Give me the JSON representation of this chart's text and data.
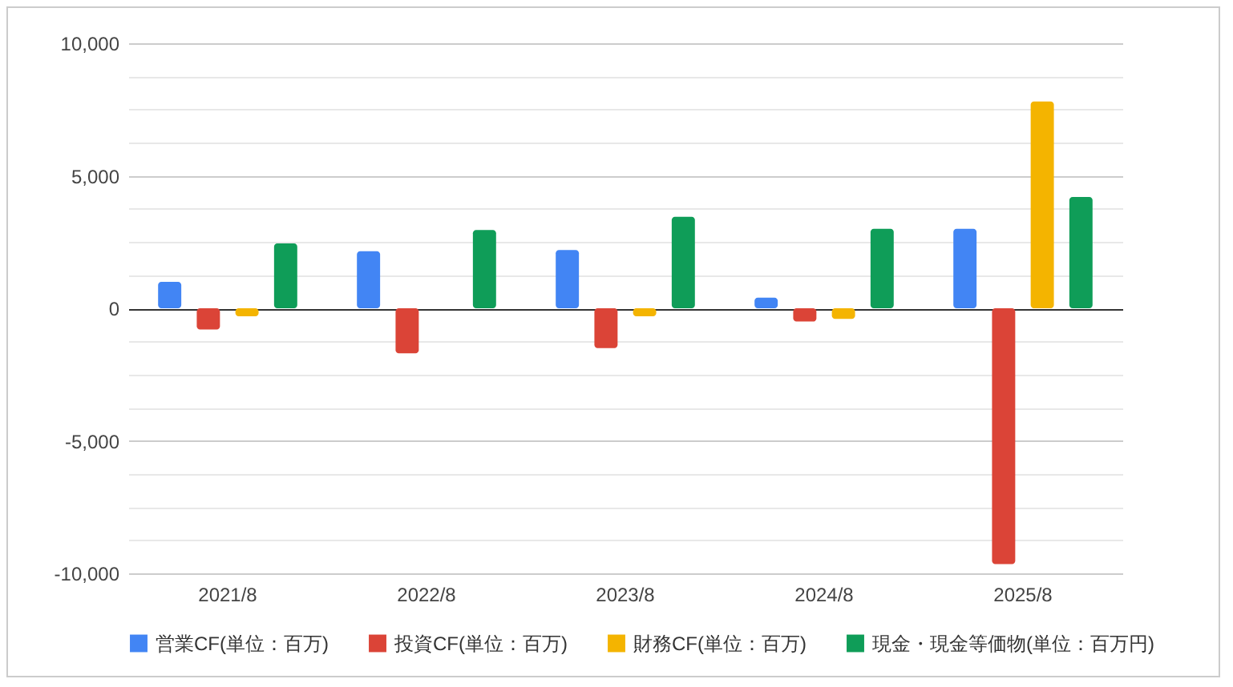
{
  "chart_data": {
    "type": "bar",
    "categories": [
      "2021/8",
      "2022/8",
      "2023/8",
      "2024/8",
      "2025/8"
    ],
    "series": [
      {
        "name": "営業CF(単位：百万)",
        "color": "#4285f4",
        "values": [
          1000,
          2150,
          2200,
          400,
          3000
        ]
      },
      {
        "name": "投資CF(単位：百万)",
        "color": "#db4437",
        "values": [
          -800,
          -1700,
          -1500,
          -500,
          -9650
        ]
      },
      {
        "name": "財務CF(単位：百万)",
        "color": "#f4b400",
        "values": [
          -300,
          0,
          -300,
          -400,
          7800
        ]
      },
      {
        "name": "現金・現金等価物(単位：百万円)",
        "color": "#0f9d58",
        "values": [
          2450,
          2950,
          3450,
          3000,
          4200
        ]
      }
    ],
    "ylim": [
      -10000,
      10000
    ],
    "yticks": [
      {
        "value": -10000,
        "label": "-10,000"
      },
      {
        "value": -8750,
        "label": null
      },
      {
        "value": -7500,
        "label": null
      },
      {
        "value": -6250,
        "label": null
      },
      {
        "value": -5000,
        "label": "-5,000"
      },
      {
        "value": -3750,
        "label": null
      },
      {
        "value": -2500,
        "label": null
      },
      {
        "value": -1250,
        "label": null
      },
      0,
      {
        "value": 1250,
        "label": null
      },
      {
        "value": 2500,
        "label": null
      },
      {
        "value": 3750,
        "label": null
      },
      {
        "value": 5000,
        "label": "5,000"
      },
      {
        "value": 6250,
        "label": null
      },
      {
        "value": 7500,
        "label": null
      },
      {
        "value": 8750,
        "label": null
      },
      {
        "value": 10000,
        "label": "10,000"
      }
    ],
    "grid": "y",
    "legend": "bottom"
  }
}
